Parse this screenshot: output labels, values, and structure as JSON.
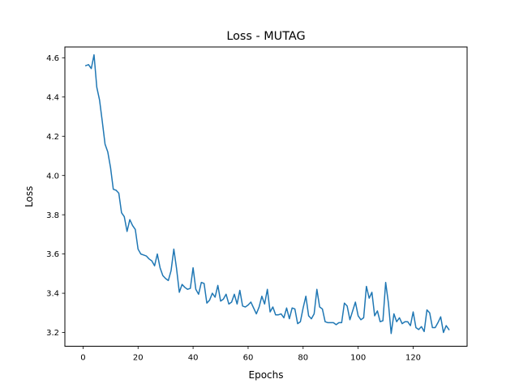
{
  "chart_data": {
    "type": "line",
    "title": "Loss - MUTAG",
    "xlabel": "Epochs",
    "ylabel": "Loss",
    "xlim": [
      -6.6,
      139.6
    ],
    "ylim": [
      3.13,
      4.655
    ],
    "xticks": [
      0,
      20,
      40,
      60,
      80,
      100,
      120
    ],
    "yticks": [
      3.2,
      3.4,
      3.6,
      3.8,
      4.0,
      4.2,
      4.4,
      4.6
    ],
    "xtick_labels": [
      "0",
      "20",
      "40",
      "60",
      "80",
      "100",
      "120"
    ],
    "ytick_labels": [
      "3.2",
      "3.4",
      "3.6",
      "3.8",
      "4.0",
      "4.2",
      "4.4",
      "4.6"
    ],
    "grid": false,
    "series": [
      {
        "color": "#1f77b4",
        "x": [
          1,
          2,
          3,
          4,
          5,
          6,
          7,
          8,
          9,
          10,
          11,
          12,
          13,
          14,
          15,
          16,
          17,
          18,
          19,
          20,
          21,
          22,
          23,
          24,
          25,
          26,
          27,
          28,
          29,
          30,
          31,
          32,
          33,
          34,
          35,
          36,
          37,
          38,
          39,
          40,
          41,
          42,
          43,
          44,
          45,
          46,
          47,
          48,
          49,
          50,
          51,
          52,
          53,
          54,
          55,
          56,
          57,
          58,
          59,
          60,
          61,
          62,
          63,
          64,
          65,
          66,
          67,
          68,
          69,
          70,
          71,
          72,
          73,
          74,
          75,
          76,
          77,
          78,
          79,
          80,
          81,
          82,
          83,
          84,
          85,
          86,
          87,
          88,
          89,
          90,
          91,
          92,
          93,
          94,
          95,
          96,
          97,
          98,
          99,
          100,
          101,
          102,
          103,
          104,
          105,
          106,
          107,
          108,
          109,
          110,
          111,
          112,
          113,
          114,
          115,
          116,
          117,
          118,
          119,
          120,
          121,
          122,
          123,
          124,
          125,
          126,
          127,
          128,
          129,
          130,
          131,
          132,
          133
        ],
        "y": [
          4.56,
          4.565,
          4.545,
          4.615,
          4.45,
          4.385,
          4.275,
          4.16,
          4.12,
          4.04,
          3.93,
          3.925,
          3.91,
          3.81,
          3.79,
          3.715,
          3.775,
          3.745,
          3.725,
          3.625,
          3.6,
          3.595,
          3.59,
          3.575,
          3.565,
          3.54,
          3.6,
          3.53,
          3.49,
          3.475,
          3.465,
          3.515,
          3.625,
          3.525,
          3.405,
          3.445,
          3.43,
          3.42,
          3.425,
          3.53,
          3.42,
          3.395,
          3.455,
          3.45,
          3.35,
          3.365,
          3.4,
          3.38,
          3.44,
          3.36,
          3.37,
          3.395,
          3.345,
          3.355,
          3.395,
          3.345,
          3.415,
          3.335,
          3.33,
          3.34,
          3.355,
          3.325,
          3.295,
          3.33,
          3.385,
          3.345,
          3.42,
          3.305,
          3.33,
          3.29,
          3.29,
          3.295,
          3.275,
          3.325,
          3.27,
          3.325,
          3.32,
          3.245,
          3.255,
          3.325,
          3.385,
          3.285,
          3.27,
          3.295,
          3.42,
          3.33,
          3.32,
          3.255,
          3.25,
          3.25,
          3.25,
          3.24,
          3.25,
          3.25,
          3.35,
          3.335,
          3.265,
          3.31,
          3.355,
          3.285,
          3.265,
          3.275,
          3.435,
          3.375,
          3.405,
          3.285,
          3.31,
          3.255,
          3.26,
          3.455,
          3.35,
          3.195,
          3.295,
          3.255,
          3.275,
          3.245,
          3.255,
          3.255,
          3.235,
          3.305,
          3.225,
          3.215,
          3.23,
          3.205,
          3.315,
          3.3,
          3.225,
          3.225,
          3.25,
          3.28,
          3.2,
          3.235,
          3.215
        ]
      }
    ]
  }
}
